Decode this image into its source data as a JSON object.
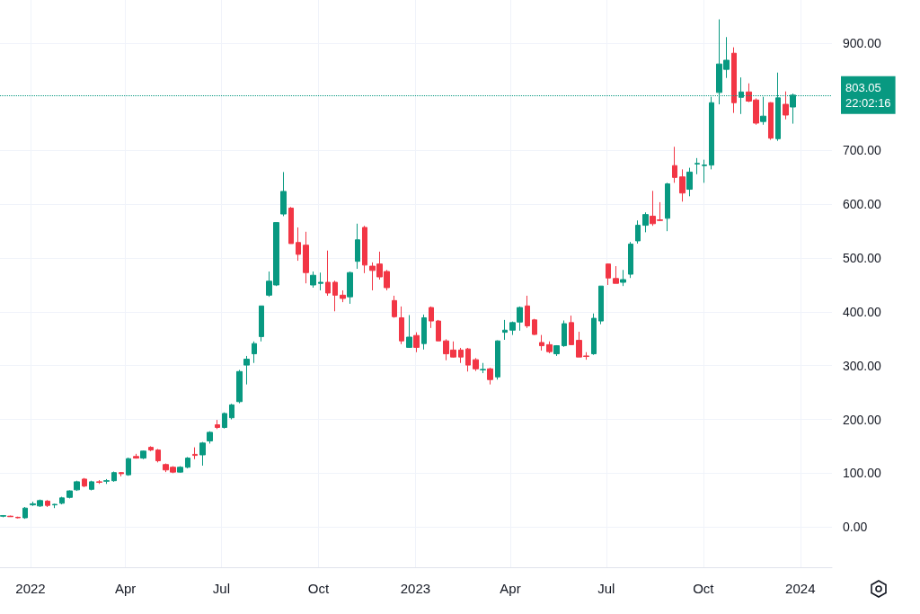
{
  "chart_data": {
    "type": "candlestick",
    "x": [
      "2021-12-06",
      "2021-12-13",
      "2021-12-20",
      "2021-12-27",
      "2022-01-03",
      "2022-01-10",
      "2022-01-17",
      "2022-01-24",
      "2022-01-31",
      "2022-02-07",
      "2022-02-14",
      "2022-02-21",
      "2022-02-28",
      "2022-03-07",
      "2022-03-14",
      "2022-03-21",
      "2022-03-28",
      "2022-04-04",
      "2022-04-11",
      "2022-04-18",
      "2022-04-25",
      "2022-05-02",
      "2022-05-09",
      "2022-05-16",
      "2022-05-23",
      "2022-05-30",
      "2022-06-06",
      "2022-06-13",
      "2022-06-20",
      "2022-06-27",
      "2022-07-04",
      "2022-07-11",
      "2022-07-18",
      "2022-07-25",
      "2022-08-01",
      "2022-08-08",
      "2022-08-15",
      "2022-08-22",
      "2022-08-29",
      "2022-09-05",
      "2022-09-12",
      "2022-09-19",
      "2022-09-26",
      "2022-10-03",
      "2022-10-10",
      "2022-10-17",
      "2022-10-24",
      "2022-10-31",
      "2022-11-07",
      "2022-11-14",
      "2022-11-21",
      "2022-11-28",
      "2022-12-05",
      "2022-12-12",
      "2022-12-19",
      "2022-12-26",
      "2023-01-02",
      "2023-01-09",
      "2023-01-16",
      "2023-01-23",
      "2023-01-30",
      "2023-02-06",
      "2023-02-13",
      "2023-02-20",
      "2023-02-27",
      "2023-03-06",
      "2023-03-13",
      "2023-03-20",
      "2023-03-27",
      "2023-04-03",
      "2023-04-10",
      "2023-04-17",
      "2023-04-24",
      "2023-05-01",
      "2023-05-08",
      "2023-05-15",
      "2023-05-22",
      "2023-05-29",
      "2023-06-05",
      "2023-06-12",
      "2023-06-19",
      "2023-06-26",
      "2023-07-03",
      "2023-07-10",
      "2023-07-17",
      "2023-07-24",
      "2023-07-31",
      "2023-08-07",
      "2023-08-14",
      "2023-08-21",
      "2023-08-28",
      "2023-09-04",
      "2023-09-11",
      "2023-09-18",
      "2023-09-25",
      "2023-10-02",
      "2023-10-09",
      "2023-10-16",
      "2023-10-23",
      "2023-10-30",
      "2023-11-06",
      "2023-11-13",
      "2023-11-20",
      "2023-11-27",
      "2023-12-04",
      "2023-12-11",
      "2023-12-18",
      "2023-12-25"
    ],
    "ohlc": [
      [
        20,
        22,
        18,
        21
      ],
      [
        20,
        21,
        19,
        19
      ],
      [
        18,
        19,
        16,
        17
      ],
      [
        17,
        37,
        15,
        35
      ],
      [
        41,
        47,
        39,
        43
      ],
      [
        39,
        51,
        37,
        49
      ],
      [
        48,
        50,
        37,
        40
      ],
      [
        41,
        43,
        35,
        42
      ],
      [
        44,
        56,
        42,
        54
      ],
      [
        55,
        68,
        53,
        67
      ],
      [
        69,
        86,
        67,
        84
      ],
      [
        89,
        91,
        74,
        76
      ],
      [
        70,
        86,
        68,
        84
      ],
      [
        84,
        87,
        80,
        83
      ],
      [
        85,
        89,
        80,
        86
      ],
      [
        86,
        103,
        84,
        101
      ],
      [
        101,
        102,
        94,
        99
      ],
      [
        97,
        129,
        95,
        127
      ],
      [
        131,
        136,
        127,
        128
      ],
      [
        128,
        142,
        126,
        141
      ],
      [
        148,
        150,
        141,
        143
      ],
      [
        143,
        145,
        120,
        123
      ],
      [
        116,
        118,
        102,
        106
      ],
      [
        111,
        113,
        100,
        102
      ],
      [
        102,
        113,
        101,
        111
      ],
      [
        111,
        130,
        109,
        128
      ],
      [
        135,
        148,
        126,
        133
      ],
      [
        134,
        158,
        114,
        156
      ],
      [
        160,
        178,
        155,
        176
      ],
      [
        190,
        199,
        182,
        185
      ],
      [
        185,
        213,
        183,
        211
      ],
      [
        203,
        229,
        200,
        227
      ],
      [
        233,
        292,
        230,
        289
      ],
      [
        301,
        318,
        265,
        312
      ],
      [
        322,
        345,
        305,
        341
      ],
      [
        354,
        411,
        345,
        411
      ],
      [
        431,
        475,
        428,
        457
      ],
      [
        450,
        566,
        448,
        566
      ],
      [
        582,
        660,
        578,
        624
      ],
      [
        593,
        595,
        527,
        527
      ],
      [
        529,
        557,
        495,
        507
      ],
      [
        524,
        549,
        453,
        473
      ],
      [
        450,
        475,
        445,
        468
      ],
      [
        453,
        473,
        440,
        455
      ],
      [
        455,
        514,
        430,
        435
      ],
      [
        455,
        458,
        401,
        431
      ],
      [
        431,
        440,
        418,
        425
      ],
      [
        428,
        475,
        415,
        473
      ],
      [
        494,
        564,
        480,
        534
      ],
      [
        557,
        560,
        472,
        487
      ],
      [
        485,
        492,
        440,
        477
      ],
      [
        489,
        512,
        460,
        465
      ],
      [
        475,
        478,
        440,
        445
      ],
      [
        421,
        430,
        389,
        391
      ],
      [
        389,
        410,
        340,
        346
      ],
      [
        334,
        394,
        333,
        353
      ],
      [
        356,
        362,
        325,
        334
      ],
      [
        341,
        395,
        330,
        389
      ],
      [
        408,
        410,
        370,
        383
      ],
      [
        383,
        385,
        346,
        346
      ],
      [
        346,
        349,
        310,
        322
      ],
      [
        329,
        345,
        315,
        316
      ],
      [
        329,
        333,
        305,
        316
      ],
      [
        331,
        333,
        289,
        301
      ],
      [
        311,
        314,
        290,
        294
      ],
      [
        292,
        305,
        286,
        293
      ],
      [
        294,
        296,
        265,
        274
      ],
      [
        279,
        347,
        274,
        346
      ],
      [
        362,
        385,
        348,
        366
      ],
      [
        366,
        382,
        357,
        380
      ],
      [
        381,
        410,
        365,
        408
      ],
      [
        411,
        430,
        370,
        374
      ],
      [
        385,
        387,
        357,
        358
      ],
      [
        343,
        357,
        328,
        337
      ],
      [
        339,
        345,
        323,
        326
      ],
      [
        322,
        338,
        318,
        337
      ],
      [
        337,
        384,
        335,
        378
      ],
      [
        380,
        393,
        338,
        339
      ],
      [
        347,
        363,
        316,
        316
      ],
      [
        318,
        325,
        311,
        317
      ],
      [
        322,
        397,
        320,
        388
      ],
      [
        383,
        448,
        377,
        448
      ],
      [
        489,
        490,
        450,
        463
      ],
      [
        462,
        485,
        453,
        453
      ],
      [
        455,
        478,
        448,
        460
      ],
      [
        470,
        530,
        463,
        526
      ],
      [
        532,
        570,
        527,
        561
      ],
      [
        561,
        585,
        548,
        581
      ],
      [
        578,
        625,
        560,
        564
      ],
      [
        571,
        604,
        569,
        570
      ],
      [
        574,
        640,
        550,
        638
      ],
      [
        672,
        707,
        640,
        650
      ],
      [
        651,
        665,
        605,
        621
      ],
      [
        628,
        668,
        615,
        660
      ],
      [
        675,
        686,
        656,
        676
      ],
      [
        672,
        683,
        640,
        673
      ],
      [
        673,
        800,
        665,
        789
      ],
      [
        808,
        944,
        786,
        861
      ],
      [
        851,
        911,
        835,
        868
      ],
      [
        881,
        892,
        770,
        789
      ],
      [
        799,
        836,
        768,
        809
      ],
      [
        809,
        825,
        790,
        792
      ],
      [
        794,
        797,
        748,
        751
      ],
      [
        754,
        800,
        748,
        764
      ],
      [
        789,
        790,
        720,
        723
      ],
      [
        722,
        845,
        718,
        798
      ],
      [
        786,
        810,
        758,
        766
      ],
      [
        781,
        806,
        750,
        803.05
      ]
    ],
    "xlim": [
      "2021-12-03",
      "2024-01-31"
    ],
    "xticks": [
      {
        "value": "2022-01-01",
        "label": "2022"
      },
      {
        "value": "2022-04-01",
        "label": "Apr"
      },
      {
        "value": "2022-07-01",
        "label": "Jul"
      },
      {
        "value": "2022-10-01",
        "label": "Oct"
      },
      {
        "value": "2023-01-01",
        "label": "2023"
      },
      {
        "value": "2023-04-01",
        "label": "Apr"
      },
      {
        "value": "2023-07-01",
        "label": "Jul"
      },
      {
        "value": "2023-10-01",
        "label": "Oct"
      },
      {
        "value": "2024-01-01",
        "label": "2024"
      }
    ],
    "ylim": [
      -75,
      980
    ],
    "yticks": [
      {
        "value": 0,
        "label": "0.00"
      },
      {
        "value": 100,
        "label": "100.00"
      },
      {
        "value": 200,
        "label": "200.00"
      },
      {
        "value": 300,
        "label": "300.00"
      },
      {
        "value": 400,
        "label": "400.00"
      },
      {
        "value": 500,
        "label": "500.00"
      },
      {
        "value": 600,
        "label": "600.00"
      },
      {
        "value": 700,
        "label": "700.00"
      },
      {
        "value": 900,
        "label": "900.00"
      }
    ],
    "grid": true,
    "ref_lines": [
      {
        "axis": "y",
        "value": 803.05,
        "label": "803.05",
        "color": "#089981",
        "line_style": "dotted"
      }
    ],
    "annotations": [
      "22:02:16"
    ]
  }
}
